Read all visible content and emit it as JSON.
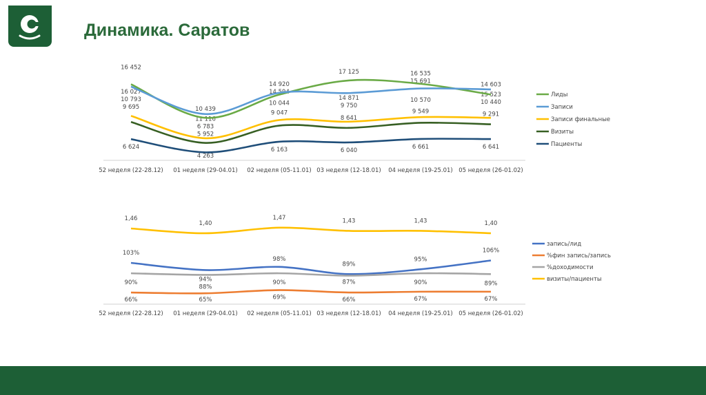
{
  "header": {
    "title": "Динамика. Саратов"
  },
  "colors": {
    "brand": "#1d5f36"
  },
  "chart_data": [
    {
      "type": "line",
      "categories": [
        "52 неделя (22-28.12)",
        "01 неделя (29-04.01)",
        "02 неделя (05-11.01)",
        "03 неделя (12-18.01)",
        "04 неделя (19-25.01)",
        "05 неделя (26-01.02)"
      ],
      "legend_position": "right",
      "grid": false,
      "series": [
        {
          "name": "Лиды",
          "color": "#6aaa46",
          "values": [
            16452,
            10439,
            14594,
            17125,
            16535,
            14603
          ],
          "labels": [
            "16 452",
            "10 439",
            "14 594",
            "17 125",
            "16 535",
            "14 603"
          ]
        },
        {
          "name": "Записи",
          "color": "#5b9bd5",
          "values": [
            16027,
            11116,
            14920,
            14871,
            15691,
            15523
          ],
          "labels": [
            "16 027",
            "11 116",
            "14 920",
            "14 871",
            "15 691",
            "15 523"
          ]
        },
        {
          "name": "Записи финальные",
          "color": "#ffc000",
          "values": [
            10793,
            6783,
            10044,
            9750,
            10570,
            10440
          ],
          "labels": [
            "10 793",
            "6 783",
            "10 044",
            "9 750",
            "10 570",
            "10 440"
          ]
        },
        {
          "name": "Визиты",
          "color": "#375f23",
          "values": [
            9695,
            5952,
            9047,
            8641,
            9549,
            9291
          ],
          "labels": [
            "9 695",
            "5 952",
            "9 047",
            "8 641",
            "9 549",
            "9 291"
          ]
        },
        {
          "name": "Пациенты",
          "color": "#1f4e79",
          "values": [
            6624,
            4263,
            6163,
            6040,
            6661,
            6641
          ],
          "labels": [
            "6 624",
            "4 263",
            "6 163",
            "6 040",
            "6 661",
            "6 641"
          ]
        }
      ]
    },
    {
      "type": "line",
      "categories": [
        "52 неделя (22-28.12)",
        "01 неделя (29-04.01)",
        "02 неделя (05-11.01)",
        "03 неделя (12-18.01)",
        "04 неделя (19-25.01)",
        "05 неделя (26-01.02)"
      ],
      "legend_position": "right",
      "grid": false,
      "series": [
        {
          "name": "запись/лид",
          "color": "#4472c4",
          "values": [
            103,
            94,
            98,
            89,
            95,
            106
          ],
          "labels": [
            "103%",
            "94%",
            "98%",
            "89%",
            "95%",
            "106%"
          ]
        },
        {
          "name": "%фин запись/запись",
          "color": "#ed7d31",
          "values": [
            66,
            65,
            69,
            66,
            67,
            67
          ],
          "labels": [
            "66%",
            "65%",
            "69%",
            "66%",
            "67%",
            "67%"
          ]
        },
        {
          "name": "%доходимости",
          "color": "#a5a5a5",
          "values": [
            90,
            88,
            90,
            87,
            90,
            89
          ],
          "labels": [
            "90%",
            "88%",
            "90%",
            "87%",
            "90%",
            "89%"
          ]
        },
        {
          "name": "визиты/пациенты",
          "color": "#ffc000",
          "values": [
            1.46,
            1.4,
            1.47,
            1.43,
            1.43,
            1.4
          ],
          "labels": [
            "1,46",
            "1,40",
            "1,47",
            "1,43",
            "1,43",
            "1,40"
          ]
        }
      ]
    }
  ]
}
